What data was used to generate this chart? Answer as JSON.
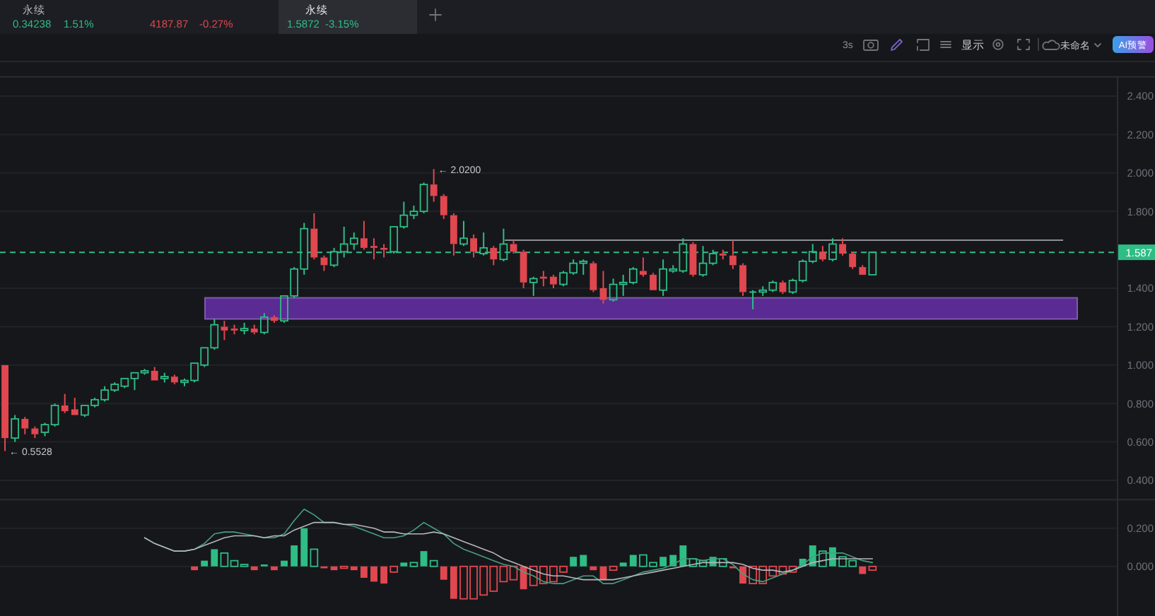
{
  "chart_data": [
    {
      "type": "candlestick",
      "categories": [
        null,
        null,
        null,
        null,
        null,
        null,
        null,
        null,
        null,
        null,
        null,
        null,
        null,
        null,
        null,
        null,
        null,
        null,
        null,
        null,
        null,
        null,
        null,
        null,
        null,
        null,
        null,
        null,
        null,
        null,
        null,
        null,
        null,
        null,
        null,
        null,
        null,
        null,
        null,
        null,
        null,
        null,
        null,
        null,
        null,
        null,
        null,
        null,
        null,
        null,
        null,
        null,
        null,
        null,
        null,
        null,
        null,
        null,
        null,
        null,
        null,
        null,
        null,
        null,
        null,
        null,
        null,
        null,
        null,
        null,
        null,
        null,
        null,
        null,
        null,
        null,
        null,
        null,
        null,
        null,
        null,
        null,
        null,
        null,
        null,
        null,
        null,
        null,
        null,
        null,
        null,
        null,
        null,
        null,
        null,
        null,
        null,
        null,
        null,
        null,
        null,
        null,
        null,
        null,
        null,
        null,
        null,
        null,
        null,
        null,
        null,
        null
      ],
      "ohlc": [
        [
          1.0,
          1.0,
          0.5528,
          0.62
        ],
        [
          0.62,
          0.74,
          0.6,
          0.72
        ],
        [
          0.72,
          0.73,
          0.64,
          0.67
        ],
        [
          0.67,
          0.68,
          0.62,
          0.64
        ],
        [
          0.65,
          0.7,
          0.63,
          0.69
        ],
        [
          0.69,
          0.8,
          0.68,
          0.79
        ],
        [
          0.79,
          0.85,
          0.75,
          0.76
        ],
        [
          0.77,
          0.83,
          0.74,
          0.74
        ],
        [
          0.74,
          0.79,
          0.73,
          0.79
        ],
        [
          0.79,
          0.83,
          0.78,
          0.82
        ],
        [
          0.82,
          0.89,
          0.81,
          0.87
        ],
        [
          0.87,
          0.91,
          0.86,
          0.9
        ],
        [
          0.89,
          0.93,
          0.88,
          0.93
        ],
        [
          0.93,
          0.96,
          0.87,
          0.96
        ],
        [
          0.96,
          0.98,
          0.95,
          0.97
        ],
        [
          0.97,
          0.99,
          0.92,
          0.92
        ],
        [
          0.93,
          0.96,
          0.91,
          0.94
        ],
        [
          0.94,
          0.95,
          0.9,
          0.91
        ],
        [
          0.91,
          0.93,
          0.89,
          0.92
        ],
        [
          0.92,
          1.01,
          0.91,
          1.01
        ],
        [
          1.0,
          1.09,
          0.99,
          1.09
        ],
        [
          1.09,
          1.24,
          1.08,
          1.21
        ],
        [
          1.2,
          1.23,
          1.13,
          1.18
        ],
        [
          1.19,
          1.21,
          1.16,
          1.18
        ],
        [
          1.18,
          1.22,
          1.16,
          1.19
        ],
        [
          1.19,
          1.21,
          1.16,
          1.17
        ],
        [
          1.17,
          1.27,
          1.16,
          1.25
        ],
        [
          1.25,
          1.26,
          1.22,
          1.23
        ],
        [
          1.23,
          1.36,
          1.22,
          1.36
        ],
        [
          1.36,
          1.51,
          1.35,
          1.5
        ],
        [
          1.5,
          1.74,
          1.47,
          1.71
        ],
        [
          1.71,
          1.79,
          1.55,
          1.56
        ],
        [
          1.56,
          1.57,
          1.49,
          1.52
        ],
        [
          1.52,
          1.61,
          1.51,
          1.59
        ],
        [
          1.59,
          1.72,
          1.56,
          1.63
        ],
        [
          1.63,
          1.69,
          1.6,
          1.66
        ],
        [
          1.66,
          1.75,
          1.6,
          1.61
        ],
        [
          1.62,
          1.66,
          1.55,
          1.61
        ],
        [
          1.61,
          1.63,
          1.56,
          1.6
        ],
        [
          1.59,
          1.72,
          1.58,
          1.72
        ],
        [
          1.72,
          1.85,
          1.71,
          1.78
        ],
        [
          1.78,
          1.83,
          1.76,
          1.8
        ],
        [
          1.8,
          1.95,
          1.79,
          1.94
        ],
        [
          1.94,
          2.02,
          1.85,
          1.88
        ],
        [
          1.88,
          1.89,
          1.76,
          1.78
        ],
        [
          1.78,
          1.79,
          1.57,
          1.63
        ],
        [
          1.63,
          1.75,
          1.62,
          1.66
        ],
        [
          1.66,
          1.68,
          1.56,
          1.59
        ],
        [
          1.58,
          1.69,
          1.57,
          1.61
        ],
        [
          1.61,
          1.62,
          1.52,
          1.55
        ],
        [
          1.55,
          1.71,
          1.54,
          1.63
        ],
        [
          1.63,
          1.65,
          1.58,
          1.59
        ],
        [
          1.59,
          1.6,
          1.4,
          1.43
        ],
        [
          1.43,
          1.46,
          1.36,
          1.45
        ],
        [
          1.46,
          1.49,
          1.41,
          1.45
        ],
        [
          1.46,
          1.47,
          1.4,
          1.42
        ],
        [
          1.42,
          1.49,
          1.41,
          1.48
        ],
        [
          1.48,
          1.55,
          1.47,
          1.53
        ],
        [
          1.53,
          1.55,
          1.47,
          1.54
        ],
        [
          1.53,
          1.54,
          1.38,
          1.39
        ],
        [
          1.4,
          1.49,
          1.32,
          1.34
        ],
        [
          1.34,
          1.45,
          1.33,
          1.42
        ],
        [
          1.42,
          1.47,
          1.36,
          1.43
        ],
        [
          1.43,
          1.51,
          1.42,
          1.5
        ],
        [
          1.49,
          1.56,
          1.46,
          1.47
        ],
        [
          1.47,
          1.48,
          1.39,
          1.39
        ],
        [
          1.39,
          1.55,
          1.36,
          1.5
        ],
        [
          1.49,
          1.52,
          1.48,
          1.5
        ],
        [
          1.49,
          1.66,
          1.48,
          1.63
        ],
        [
          1.63,
          1.64,
          1.46,
          1.47
        ],
        [
          1.47,
          1.62,
          1.46,
          1.53
        ],
        [
          1.53,
          1.6,
          1.52,
          1.58
        ],
        [
          1.58,
          1.6,
          1.55,
          1.57
        ],
        [
          1.57,
          1.65,
          1.5,
          1.52
        ],
        [
          1.52,
          1.53,
          1.36,
          1.38
        ],
        [
          1.38,
          1.39,
          1.29,
          1.38
        ],
        [
          1.38,
          1.41,
          1.36,
          1.39
        ],
        [
          1.39,
          1.44,
          1.38,
          1.43
        ],
        [
          1.43,
          1.44,
          1.37,
          1.38
        ],
        [
          1.38,
          1.45,
          1.37,
          1.44
        ],
        [
          1.44,
          1.55,
          1.43,
          1.54
        ],
        [
          1.54,
          1.63,
          1.53,
          1.59
        ],
        [
          1.59,
          1.62,
          1.54,
          1.55
        ],
        [
          1.55,
          1.66,
          1.54,
          1.63
        ],
        [
          1.63,
          1.66,
          1.57,
          1.58
        ],
        [
          1.58,
          1.59,
          1.5,
          1.51
        ],
        [
          1.51,
          1.52,
          1.47,
          1.47
        ],
        [
          1.47,
          1.59,
          1.47,
          1.5872
        ],
        null,
        null,
        null,
        null,
        null,
        null,
        null,
        null,
        null,
        null,
        null,
        null,
        null,
        null,
        null,
        null,
        null,
        null,
        null,
        null,
        null,
        null,
        null,
        null
      ],
      "ylim": [
        0.3,
        2.5
      ],
      "yticks": [
        {
          "value": 0.4,
          "label": "0.400"
        },
        {
          "value": 0.6,
          "label": "0.600"
        },
        {
          "value": 0.8,
          "label": "0.800"
        },
        {
          "value": 1.0,
          "label": "1.000"
        },
        {
          "value": 1.2,
          "label": "1.200"
        },
        {
          "value": 1.4,
          "label": "1.400"
        },
        {
          "value": 1.8,
          "label": "1.800"
        },
        {
          "value": 2.0,
          "label": "2.000"
        },
        {
          "value": 2.2,
          "label": "2.200"
        },
        {
          "value": 2.4,
          "label": "2.400"
        }
      ],
      "grid": "y",
      "tick_labels": "y",
      "ref_lines": [
        {
          "axis": "y",
          "value": 1.65,
          "color": "#8d8f94"
        },
        {
          "axis": "y",
          "value": 1.587,
          "label": "1.587",
          "color": "#2ebd85",
          "line_style": "dashed"
        }
      ],
      "bands": [
        {
          "axis": "y",
          "from": 1.24,
          "to": 1.35,
          "color": "#5a2b93"
        }
      ],
      "annotations": [
        "← 2.0200",
        "← 0.5528",
        "永续",
        "0.34238",
        "1.51%",
        "4187.87",
        "-0.27%",
        "永续",
        "1.5872",
        "-3.15%",
        "3s",
        "显示",
        "未命名",
        "AI预警"
      ]
    },
    {
      "type": "bar",
      "categories": [
        null,
        null,
        null,
        null,
        null,
        null,
        null,
        null,
        null,
        null,
        null,
        null,
        null,
        null,
        null,
        null,
        null,
        null,
        null,
        null,
        null,
        null,
        null,
        null,
        null,
        null,
        null,
        null,
        null,
        null,
        null,
        null,
        null,
        null,
        null,
        null,
        null,
        null,
        null,
        null,
        null,
        null,
        null,
        null,
        null,
        null,
        null,
        null,
        null,
        null,
        null,
        null,
        null,
        null,
        null,
        null,
        null,
        null,
        null,
        null,
        null,
        null,
        null,
        null,
        null,
        null,
        null,
        null,
        null,
        null,
        null,
        null,
        null,
        null,
        null,
        null,
        null,
        null,
        null,
        null,
        null,
        null,
        null,
        null,
        null,
        null,
        null,
        null,
        null,
        null,
        null,
        null,
        null,
        null,
        null,
        null,
        null,
        null,
        null,
        null,
        null,
        null,
        null,
        null,
        null,
        null,
        null,
        null,
        null,
        null,
        null,
        null
      ],
      "series": [
        {
          "type": "bar",
          "values": [
            null,
            null,
            null,
            null,
            null,
            null,
            null,
            null,
            null,
            null,
            null,
            null,
            null,
            null,
            null,
            null,
            null,
            null,
            null,
            -0.02,
            0.03,
            0.09,
            0.07,
            0.03,
            0.01,
            -0.02,
            0.01,
            -0.02,
            0.03,
            0.11,
            0.2,
            0.09,
            -0.01,
            -0.02,
            -0.01,
            -0.02,
            -0.06,
            -0.08,
            -0.09,
            -0.03,
            0.02,
            0.02,
            0.08,
            0.03,
            -0.07,
            -0.17,
            -0.17,
            -0.17,
            -0.15,
            -0.13,
            -0.08,
            -0.07,
            -0.12,
            -0.1,
            -0.09,
            -0.08,
            -0.03,
            0.05,
            0.06,
            -0.02,
            -0.07,
            -0.02,
            0.02,
            0.06,
            0.06,
            0.02,
            0.05,
            0.06,
            0.11,
            0.04,
            0.03,
            0.05,
            0.04,
            -0.01,
            -0.09,
            -0.09,
            -0.09,
            -0.05,
            -0.04,
            -0.03,
            0.04,
            0.11,
            0.08,
            0.1,
            0.05,
            0.03,
            -0.04,
            -0.02,
            null,
            null,
            null,
            null,
            null,
            null,
            null,
            null,
            null,
            null,
            null,
            null,
            null,
            null,
            null,
            null,
            null,
            null,
            null,
            null,
            null,
            null,
            null,
            null
          ],
          "colors": [
            null,
            null,
            null,
            null,
            null,
            null,
            null,
            null,
            null,
            null,
            null,
            null,
            null,
            null,
            null,
            null,
            null,
            null,
            null,
            "#e0474f",
            "#2ebd85",
            "#2ebd85",
            "#2ebd85",
            "#2ebd85",
            "#2ebd85",
            "#e0474f",
            "#2ebd85",
            "#e0474f",
            "#2ebd85",
            "#2ebd85",
            "#2ebd85",
            "#2ebd85",
            "#e0474f",
            "#e0474f",
            "#e0474f",
            "#e0474f",
            "#e0474f",
            "#e0474f",
            "#e0474f",
            "#e0474f",
            "#2ebd85",
            "#2ebd85",
            "#2ebd85",
            "#2ebd85",
            "#e0474f",
            "#e0474f",
            "#e0474f",
            "#e0474f",
            "#e0474f",
            "#e0474f",
            "#e0474f",
            "#e0474f",
            "#e0474f",
            "#e0474f",
            "#e0474f",
            "#e0474f",
            "#e0474f",
            "#2ebd85",
            "#2ebd85",
            "#e0474f",
            "#e0474f",
            "#e0474f",
            "#2ebd85",
            "#2ebd85",
            "#2ebd85",
            "#2ebd85",
            "#2ebd85",
            "#2ebd85",
            "#2ebd85",
            "#2ebd85",
            "#2ebd85",
            "#2ebd85",
            "#2ebd85",
            "#e0474f",
            "#e0474f",
            "#e0474f",
            "#e0474f",
            "#e0474f",
            "#e0474f",
            "#e0474f",
            "#2ebd85",
            "#2ebd85",
            "#2ebd85",
            "#2ebd85",
            "#2ebd85",
            "#2ebd85",
            "#e0474f",
            "#e0474f",
            null,
            null,
            null,
            null,
            null,
            null,
            null,
            null,
            null,
            null,
            null,
            null,
            null,
            null,
            null,
            null,
            null,
            null,
            null,
            null,
            null,
            null,
            null,
            null
          ]
        },
        {
          "type": "line",
          "color": "#45a07f",
          "values": [
            null,
            null,
            null,
            null,
            null,
            null,
            null,
            null,
            null,
            null,
            null,
            null,
            null,
            null,
            0.15,
            0.12,
            0.1,
            0.08,
            0.08,
            0.09,
            0.12,
            0.17,
            0.18,
            0.18,
            0.17,
            0.16,
            0.15,
            0.15,
            0.17,
            0.24,
            0.3,
            0.27,
            0.23,
            0.23,
            0.22,
            0.21,
            0.19,
            0.17,
            0.15,
            0.15,
            0.16,
            0.19,
            0.23,
            0.2,
            0.17,
            0.12,
            0.09,
            0.07,
            0.05,
            0.03,
            0.01,
            0.0,
            -0.03,
            -0.05,
            -0.08,
            -0.09,
            -0.09,
            -0.07,
            -0.05,
            -0.05,
            -0.09,
            -0.09,
            -0.07,
            -0.05,
            -0.03,
            -0.02,
            -0.01,
            0.01,
            0.04,
            0.04,
            0.03,
            0.04,
            0.04,
            0.01,
            -0.04,
            -0.07,
            -0.08,
            -0.06,
            -0.04,
            -0.02,
            0.01,
            0.05,
            0.07,
            0.07,
            0.07,
            0.05,
            0.03,
            0.02,
            null,
            null,
            null,
            null,
            null,
            null,
            null,
            null,
            null,
            null,
            null,
            null,
            null,
            null,
            null,
            null,
            null,
            null,
            null,
            null,
            null,
            null,
            null,
            null
          ]
        },
        {
          "type": "line",
          "color": "#b4b7bc",
          "values": [
            null,
            null,
            null,
            null,
            null,
            null,
            null,
            null,
            null,
            null,
            null,
            null,
            null,
            null,
            0.15,
            0.12,
            0.1,
            0.08,
            0.08,
            0.09,
            0.11,
            0.13,
            0.15,
            0.16,
            0.16,
            0.16,
            0.15,
            0.16,
            0.16,
            0.19,
            0.21,
            0.23,
            0.23,
            0.23,
            0.22,
            0.22,
            0.21,
            0.2,
            0.18,
            0.18,
            0.17,
            0.17,
            0.17,
            0.18,
            0.17,
            0.15,
            0.13,
            0.11,
            0.09,
            0.07,
            0.04,
            0.02,
            0.0,
            -0.02,
            -0.04,
            -0.05,
            -0.05,
            -0.06,
            -0.07,
            -0.07,
            -0.07,
            -0.07,
            -0.06,
            -0.05,
            -0.04,
            -0.03,
            -0.02,
            -0.01,
            0.0,
            0.01,
            0.02,
            0.02,
            0.02,
            0.02,
            0.01,
            -0.01,
            -0.02,
            -0.02,
            -0.03,
            -0.02,
            0.0,
            0.02,
            0.03,
            0.04,
            0.04,
            0.04,
            0.04,
            0.04,
            null,
            null,
            null,
            null,
            null,
            null,
            null,
            null,
            null,
            null,
            null,
            null,
            null,
            null,
            null,
            null,
            null,
            null,
            null,
            null,
            null,
            null,
            null,
            null
          ]
        }
      ],
      "ylim": [
        -0.26,
        0.35
      ],
      "yticks": [
        {
          "value": 0.2,
          "label": "0.200"
        },
        {
          "value": 0,
          "label": "0.000"
        }
      ],
      "grid": "y",
      "tick_labels": "y"
    }
  ]
}
